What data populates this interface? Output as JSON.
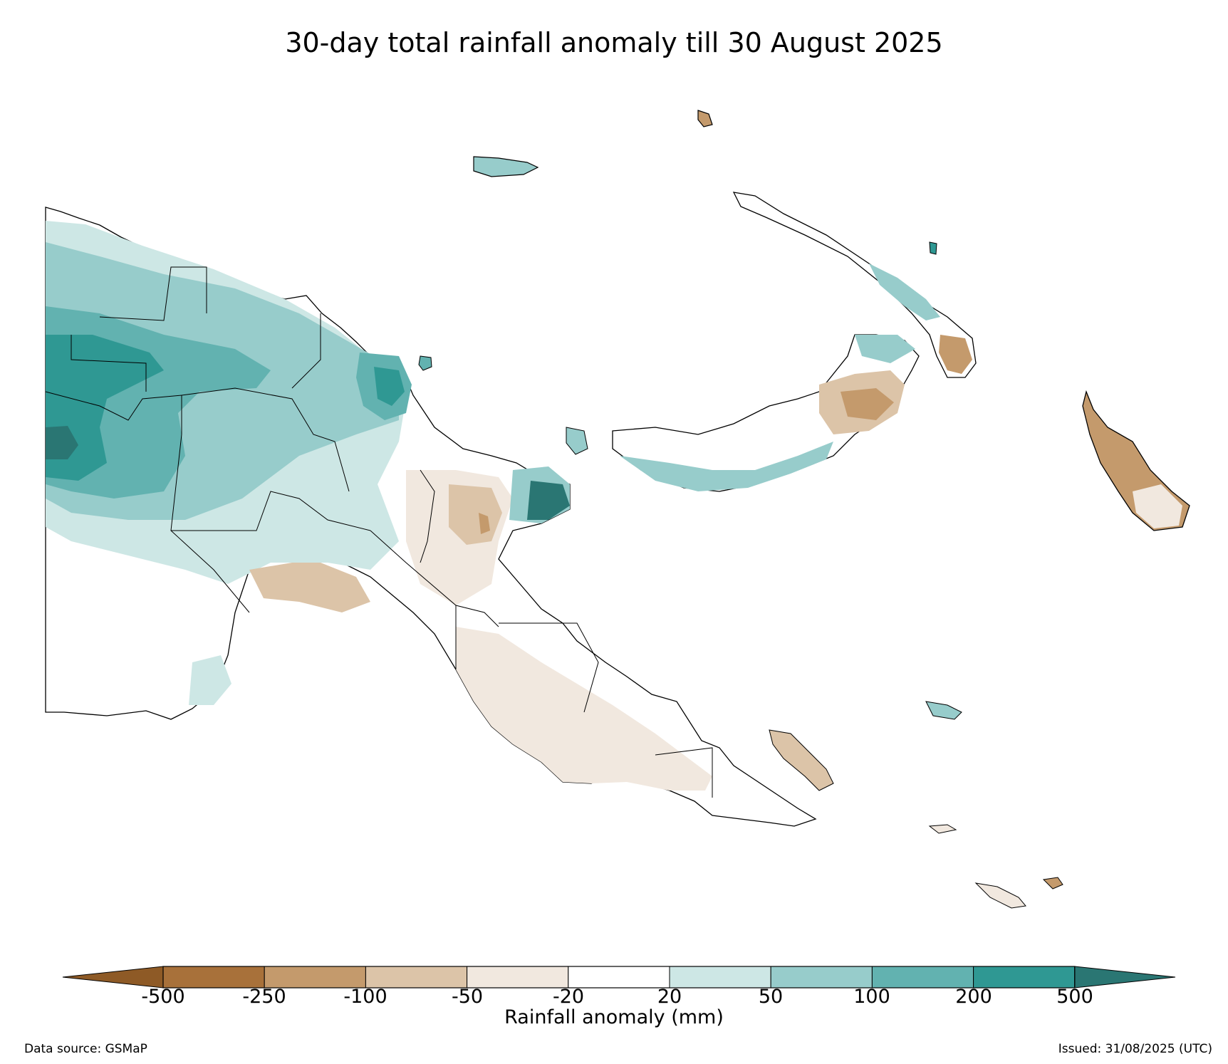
{
  "title": "30-day total rainfall anomaly till 30 August 2025",
  "colorbar": {
    "label": "Rainfall anomaly (mm)",
    "ticks": [
      "-500",
      "-250",
      "-100",
      "-50",
      "-20",
      "20",
      "50",
      "100",
      "200",
      "500"
    ],
    "colors": {
      "below_min": "#8e5a26",
      "n500_n250": "#a8713a",
      "n250_n100": "#c49a6c",
      "n100_n50": "#dcc4a8",
      "n50_n20": "#f1e8df",
      "n20_20": "#ffffff",
      "p20_p50": "#cde7e5",
      "p50_p100": "#97cccb",
      "p100_p200": "#62b2b0",
      "p200_p500": "#2f9893",
      "above_max": "#2a7673"
    }
  },
  "footer": {
    "source": "Data source: GSMaP",
    "issued": "Issued: 31/08/2025 (UTC)"
  }
}
